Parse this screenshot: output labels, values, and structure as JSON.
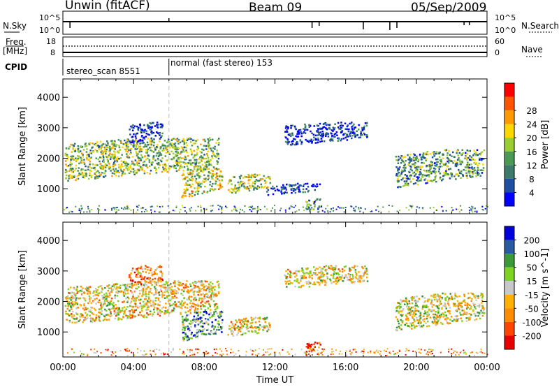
{
  "header": {
    "station": "Unwin (fitACF)",
    "beam": "Beam 09",
    "date": "05/Sep/2009"
  },
  "left_labels": {
    "nsky": "N.Sky",
    "freq": "Freq.",
    "mhz": "[MHz]",
    "cpid": "CPID"
  },
  "right_labels": {
    "nsearch": "N.Search",
    "nave": "Nave"
  },
  "noise_panel": {
    "left_ticks": [
      "10^5",
      "10^0"
    ],
    "right_ticks": [
      "10^5",
      "10^0"
    ]
  },
  "freq_panel": {
    "left_ticks": [
      "18",
      "8"
    ],
    "right_ticks": [
      "60",
      "0"
    ]
  },
  "cpid_panel": {
    "segments": [
      {
        "label": "stereo_scan 8551",
        "start_ut": 0
      },
      {
        "label": "normal (fast stereo) 153",
        "start_ut": 6
      }
    ]
  },
  "colors": {
    "power": [
      "#0000ff",
      "#1f4fa0",
      "#3c7a6b",
      "#4a9a55",
      "#9acd32",
      "#ffd700",
      "#ff9900",
      "#ff5500",
      "#ff0000"
    ],
    "velocity": [
      "#e80000",
      "#ff4500",
      "#ff8c00",
      "#ffb000",
      "#c8c8c8",
      "#7ed321",
      "#3a9a3a",
      "#2a5aa0",
      "#0000dd"
    ]
  },
  "chart_data": [
    {
      "type": "heatmap",
      "title": "Power",
      "xlabel": "Time UT",
      "ylabel": "Slant Range [km]",
      "xlim": [
        0,
        24
      ],
      "ylim": [
        180,
        4600
      ],
      "xticks": [
        "00:00",
        "04:00",
        "08:00",
        "12:00",
        "16:00",
        "20:00",
        "00:00"
      ],
      "yticks": [
        1000,
        2000,
        3000,
        4000
      ],
      "colorbar": {
        "label": "Power [dB]",
        "ticks": [
          4,
          8,
          12,
          16,
          20,
          24,
          28
        ]
      },
      "regions": [
        {
          "t0": 0.1,
          "t1": 8.8,
          "r0": 1200,
          "r1": 2700,
          "level": 0.45
        },
        {
          "t0": 3.7,
          "t1": 5.6,
          "r0": 2450,
          "r1": 3200,
          "level": 0.1
        },
        {
          "t0": 6.7,
          "t1": 9.0,
          "r0": 650,
          "r1": 1700,
          "level": 0.55
        },
        {
          "t0": 9.3,
          "t1": 11.7,
          "r0": 800,
          "r1": 1500,
          "level": 0.5
        },
        {
          "t0": 11.5,
          "t1": 14.5,
          "r0": 800,
          "r1": 1200,
          "level": 0.1
        },
        {
          "t0": 13.7,
          "t1": 14.6,
          "r0": 230,
          "r1": 700,
          "level": 0.35
        },
        {
          "t0": 12.5,
          "t1": 17.2,
          "r0": 2400,
          "r1": 3200,
          "level": 0.1
        },
        {
          "t0": 18.8,
          "t1": 23.8,
          "r0": 1000,
          "r1": 2300,
          "level": 0.35
        }
      ]
    },
    {
      "type": "heatmap",
      "title": "Velocity",
      "xlabel": "Time UT",
      "ylabel": "Slant Range [km]",
      "xlim": [
        0,
        24
      ],
      "ylim": [
        180,
        4600
      ],
      "xticks": [
        "00:00",
        "04:00",
        "08:00",
        "12:00",
        "16:00",
        "20:00",
        "00:00"
      ],
      "yticks": [
        1000,
        2000,
        3000,
        4000
      ],
      "colorbar": {
        "label": "Velocity [m s^-1]",
        "ticks": [
          200,
          100,
          50,
          15,
          -15,
          -50,
          -100,
          -200
        ]
      },
      "regions": [
        {
          "t0": 0.1,
          "t1": 8.8,
          "r0": 1200,
          "r1": 2700,
          "level": 0.45
        },
        {
          "t0": 3.7,
          "t1": 5.6,
          "r0": 2450,
          "r1": 3200,
          "level": 0.3
        },
        {
          "t0": 6.7,
          "t1": 9.0,
          "r0": 650,
          "r1": 1700,
          "level": 0.7
        },
        {
          "t0": 9.3,
          "t1": 11.7,
          "r0": 800,
          "r1": 1500,
          "level": 0.45
        },
        {
          "t0": 13.7,
          "t1": 14.6,
          "r0": 230,
          "r1": 700,
          "level": 0.15
        },
        {
          "t0": 12.5,
          "t1": 17.2,
          "r0": 2400,
          "r1": 3200,
          "level": 0.45
        },
        {
          "t0": 18.8,
          "t1": 23.8,
          "r0": 1000,
          "r1": 2300,
          "level": 0.5
        }
      ]
    }
  ]
}
